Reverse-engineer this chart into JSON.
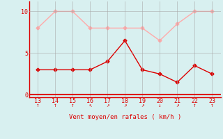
{
  "hours": [
    13,
    14,
    15,
    16,
    17,
    18,
    19,
    20,
    21,
    22,
    23
  ],
  "wind_avg": [
    3,
    3,
    3,
    3,
    4,
    6.5,
    3,
    2.5,
    1.5,
    3.5,
    2.5
  ],
  "wind_gust": [
    8,
    10,
    10,
    8,
    8,
    8,
    8,
    6.5,
    8.5,
    10,
    10
  ],
  "avg_color": "#dd0000",
  "gust_color": "#ffaaaa",
  "bg_color": "#d8f0f0",
  "grid_color": "#aaaaaa",
  "axis_color": "#dd0000",
  "xlabel": "Vent moyen/en rafales ( km/h )",
  "ylim": [
    -0.3,
    11.2
  ],
  "yticks": [
    0,
    5,
    10
  ],
  "wind_dirs": [
    "↑",
    "↑",
    "↑",
    "↖",
    "↗",
    "↗",
    "↗",
    "↓",
    "↗",
    "↑",
    "↑"
  ]
}
